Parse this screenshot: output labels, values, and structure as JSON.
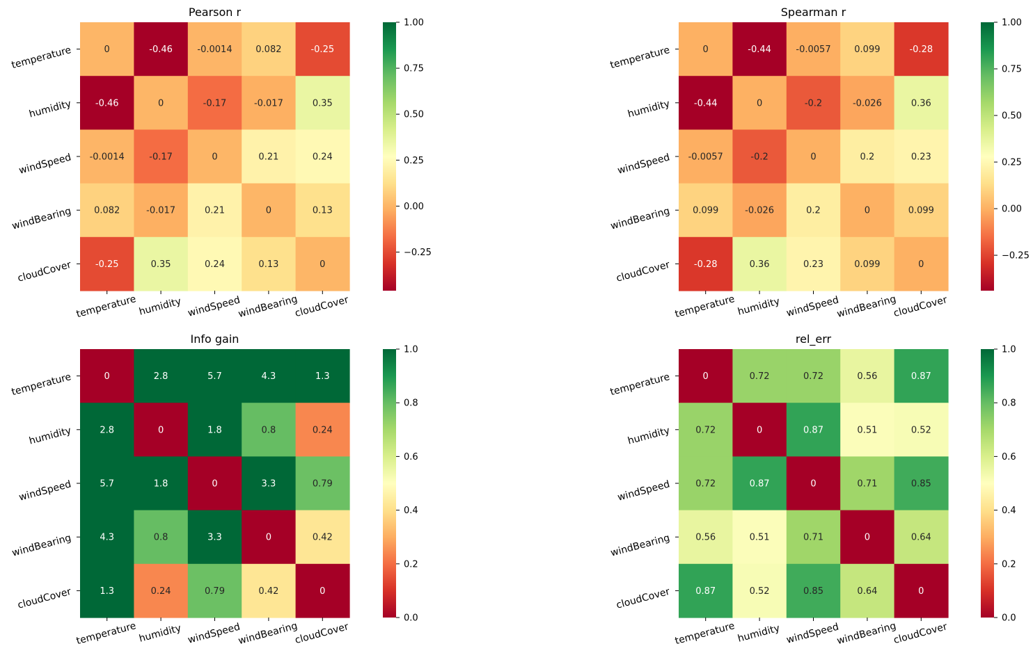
{
  "chart_data": [
    {
      "type": "heatmap",
      "title": "Pearson r",
      "rows": [
        "temperature",
        "humidity",
        "windSpeed",
        "windBearing",
        "cloudCover"
      ],
      "cols": [
        "temperature",
        "humidity",
        "windSpeed",
        "windBearing",
        "cloudCover"
      ],
      "values": [
        [
          "0",
          "-0.46",
          "-0.0014",
          "0.082",
          "-0.25"
        ],
        [
          "-0.46",
          "0",
          "-0.17",
          "-0.017",
          "0.35"
        ],
        [
          "-0.0014",
          "-0.17",
          "0",
          "0.21",
          "0.24"
        ],
        [
          "0.082",
          "-0.017",
          "0.21",
          "0",
          "0.13"
        ],
        [
          "-0.25",
          "0.35",
          "0.24",
          "0.13",
          "0"
        ]
      ],
      "colormap": "RdYlGn",
      "vmin": -0.46,
      "vmax": 1.0,
      "colorbar_ticks": [
        "1.00",
        "0.75",
        "0.50",
        "0.25",
        "0.00",
        "−0.25"
      ],
      "colorbar_tick_values": [
        1.0,
        0.75,
        0.5,
        0.25,
        0.0,
        -0.25
      ]
    },
    {
      "type": "heatmap",
      "title": "Spearman r",
      "rows": [
        "temperature",
        "humidity",
        "windSpeed",
        "windBearing",
        "cloudCover"
      ],
      "cols": [
        "temperature",
        "humidity",
        "windSpeed",
        "windBearing",
        "cloudCover"
      ],
      "values": [
        [
          "0",
          "-0.44",
          "-0.0057",
          "0.099",
          "-0.28"
        ],
        [
          "-0.44",
          "0",
          "-0.2",
          "-0.026",
          "0.36"
        ],
        [
          "-0.0057",
          "-0.2",
          "0",
          "0.2",
          "0.23"
        ],
        [
          "0.099",
          "-0.026",
          "0.2",
          "0",
          "0.099"
        ],
        [
          "-0.28",
          "0.36",
          "0.23",
          "0.099",
          "0"
        ]
      ],
      "colormap": "RdYlGn",
      "vmin": -0.44,
      "vmax": 1.0,
      "colorbar_ticks": [
        "1.00",
        "0.75",
        "0.50",
        "0.25",
        "0.00",
        "−0.25"
      ],
      "colorbar_tick_values": [
        1.0,
        0.75,
        0.5,
        0.25,
        0.0,
        -0.25
      ]
    },
    {
      "type": "heatmap",
      "title": "Info gain",
      "rows": [
        "temperature",
        "humidity",
        "windSpeed",
        "windBearing",
        "cloudCover"
      ],
      "cols": [
        "temperature",
        "humidity",
        "windSpeed",
        "windBearing",
        "cloudCover"
      ],
      "values": [
        [
          "0",
          "2.8",
          "5.7",
          "4.3",
          "1.3"
        ],
        [
          "2.8",
          "0",
          "1.8",
          "0.8",
          "0.24"
        ],
        [
          "5.7",
          "1.8",
          "0",
          "3.3",
          "0.79"
        ],
        [
          "4.3",
          "0.8",
          "3.3",
          "0",
          "0.42"
        ],
        [
          "1.3",
          "0.24",
          "0.79",
          "0.42",
          "0"
        ]
      ],
      "colormap": "RdYlGn",
      "vmin": 0.0,
      "vmax": 1.0,
      "colorbar_ticks": [
        "1.0",
        "0.8",
        "0.6",
        "0.4",
        "0.2",
        "0.0"
      ],
      "colorbar_tick_values": [
        1.0,
        0.8,
        0.6,
        0.4,
        0.2,
        0.0
      ]
    },
    {
      "type": "heatmap",
      "title": "rel_err",
      "rows": [
        "temperature",
        "humidity",
        "windSpeed",
        "windBearing",
        "cloudCover"
      ],
      "cols": [
        "temperature",
        "humidity",
        "windSpeed",
        "windBearing",
        "cloudCover"
      ],
      "values": [
        [
          "0",
          "0.72",
          "0.72",
          "0.56",
          "0.87"
        ],
        [
          "0.72",
          "0",
          "0.87",
          "0.51",
          "0.52"
        ],
        [
          "0.72",
          "0.87",
          "0",
          "0.71",
          "0.85"
        ],
        [
          "0.56",
          "0.51",
          "0.71",
          "0",
          "0.64"
        ],
        [
          "0.87",
          "0.52",
          "0.85",
          "0.64",
          "0"
        ]
      ],
      "colormap": "RdYlGn",
      "vmin": 0.0,
      "vmax": 1.0,
      "colorbar_ticks": [
        "1.0",
        "0.8",
        "0.6",
        "0.4",
        "0.2",
        "0.0"
      ],
      "colorbar_tick_values": [
        1.0,
        0.8,
        0.6,
        0.4,
        0.2,
        0.0
      ]
    }
  ]
}
